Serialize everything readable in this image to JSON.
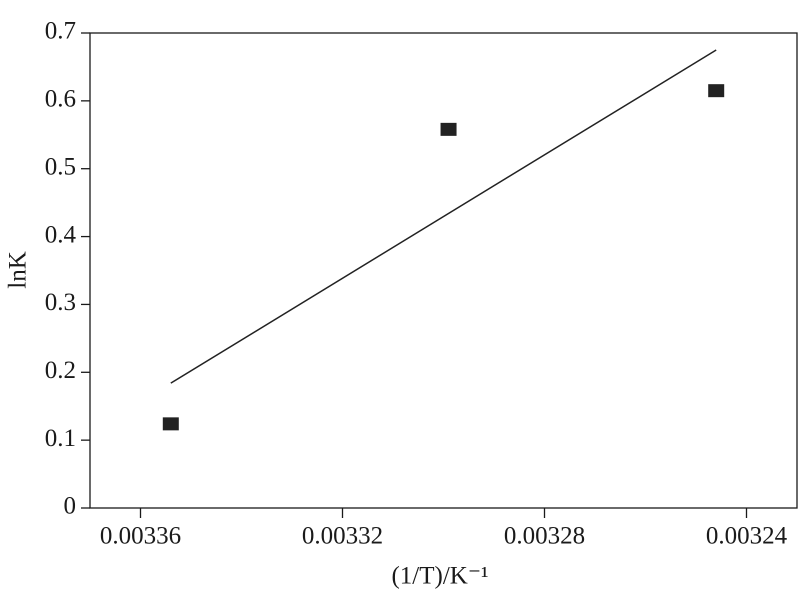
{
  "chart_data": {
    "type": "scatter",
    "x_label": "(1/T)/K⁻¹",
    "y_label": "lnK",
    "xlim": [
      0.00337,
      0.00323
    ],
    "ylim": [
      0,
      0.7
    ],
    "xticks": [
      0.00336,
      0.00332,
      0.00328,
      0.00324
    ],
    "yticks": [
      0,
      0.1,
      0.2,
      0.3,
      0.4,
      0.5,
      0.6,
      0.7
    ],
    "points": {
      "color": "#222222",
      "x": [
        0.003354,
        0.003299,
        0.003246
      ],
      "values": [
        0.124,
        0.558,
        0.615
      ]
    },
    "fit": {
      "color": "#222222",
      "x": [
        0.003354,
        0.003246
      ],
      "values": [
        0.184,
        0.675
      ]
    }
  }
}
